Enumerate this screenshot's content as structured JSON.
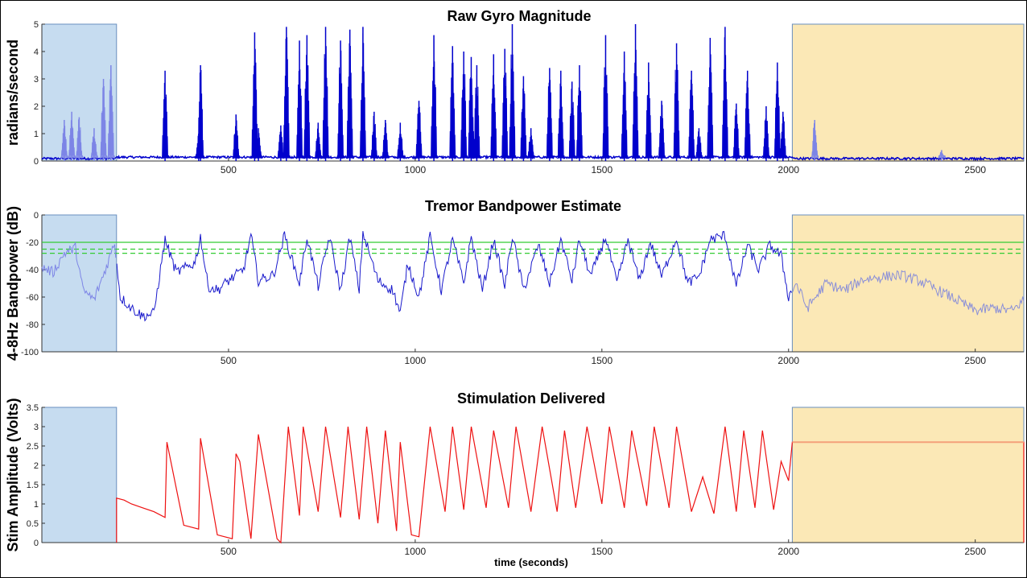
{
  "chart_data": [
    {
      "type": "line",
      "title": "Raw Gyro Magnitude",
      "ylabel": "radians/second",
      "xlabel": "",
      "xlim": [
        0,
        2630
      ],
      "ylim": [
        0,
        5
      ],
      "xticks": [
        500,
        1000,
        1500,
        2000,
        2500
      ],
      "yticks": [
        0,
        1,
        2,
        3,
        4,
        5
      ],
      "color": "#0000cc",
      "grid": false,
      "shaded_regions": [
        {
          "x": [
            0,
            200
          ],
          "color": "#c6dcf0"
        },
        {
          "x": [
            2010,
            2630
          ],
          "color": "#fbe8b6"
        }
      ],
      "spikes": [
        [
          60,
          1.5
        ],
        [
          80,
          1.8
        ],
        [
          100,
          1.6
        ],
        [
          140,
          1.2
        ],
        [
          165,
          3.0
        ],
        [
          185,
          3.5
        ],
        [
          330,
          3.3
        ],
        [
          420,
          1.0
        ],
        [
          425,
          3.5
        ],
        [
          520,
          1.7
        ],
        [
          570,
          4.7
        ],
        [
          580,
          1.2
        ],
        [
          640,
          1.3
        ],
        [
          655,
          4.9
        ],
        [
          690,
          4.4
        ],
        [
          710,
          4.6
        ],
        [
          740,
          1.4
        ],
        [
          760,
          4.9
        ],
        [
          800,
          4.4
        ],
        [
          825,
          4.8
        ],
        [
          860,
          4.9
        ],
        [
          890,
          1.8
        ],
        [
          920,
          1.5
        ],
        [
          960,
          1.4
        ],
        [
          1010,
          2.2
        ],
        [
          1050,
          4.6
        ],
        [
          1100,
          4.2
        ],
        [
          1130,
          4.0
        ],
        [
          1150,
          3.8
        ],
        [
          1165,
          3.5
        ],
        [
          1210,
          3.9
        ],
        [
          1240,
          4.1
        ],
        [
          1260,
          5.0
        ],
        [
          1290,
          3.1
        ],
        [
          1310,
          1.2
        ],
        [
          1360,
          3.4
        ],
        [
          1390,
          3.3
        ],
        [
          1420,
          2.9
        ],
        [
          1440,
          3.5
        ],
        [
          1510,
          4.6
        ],
        [
          1560,
          4.0
        ],
        [
          1590,
          5.0
        ],
        [
          1625,
          3.6
        ],
        [
          1660,
          2.2
        ],
        [
          1700,
          4.3
        ],
        [
          1740,
          3.3
        ],
        [
          1760,
          1.2
        ],
        [
          1790,
          4.5
        ],
        [
          1830,
          4.9
        ],
        [
          1860,
          2.1
        ],
        [
          1890,
          3.3
        ],
        [
          1940,
          2.0
        ],
        [
          1970,
          3.6
        ],
        [
          1985,
          1.8
        ],
        [
          2070,
          1.5
        ],
        [
          2410,
          0.4
        ]
      ]
    },
    {
      "type": "line",
      "title": "Tremor Bandpower Estimate",
      "ylabel": "4-8Hz Bandpower (dB)",
      "xlabel": "",
      "xlim": [
        0,
        2630
      ],
      "ylim": [
        -100,
        0
      ],
      "xticks": [
        500,
        1000,
        1500,
        2000,
        2500
      ],
      "yticks": [
        -100,
        -80,
        -60,
        -40,
        -20,
        0
      ],
      "color": "#1a1acc",
      "threshold_lines": [
        {
          "y": -20,
          "style": "solid",
          "color": "#33cc33"
        },
        {
          "y": -25,
          "style": "dashed",
          "color": "#33cc33"
        },
        {
          "y": -28,
          "style": "dashed",
          "color": "#33cc33"
        }
      ],
      "shaded_regions": [
        {
          "x": [
            0,
            200
          ],
          "color": "#c6dcf0"
        },
        {
          "x": [
            2010,
            2630
          ],
          "color": "#fbe8b6"
        }
      ],
      "series_points": [
        [
          0,
          -38
        ],
        [
          30,
          -42
        ],
        [
          60,
          -28
        ],
        [
          90,
          -24
        ],
        [
          110,
          -55
        ],
        [
          140,
          -62
        ],
        [
          170,
          -40
        ],
        [
          195,
          -20
        ],
        [
          210,
          -60
        ],
        [
          240,
          -68
        ],
        [
          270,
          -74
        ],
        [
          300,
          -72
        ],
        [
          330,
          -18
        ],
        [
          360,
          -42
        ],
        [
          390,
          -38
        ],
        [
          410,
          -35
        ],
        [
          425,
          -16
        ],
        [
          445,
          -52
        ],
        [
          470,
          -55
        ],
        [
          500,
          -48
        ],
        [
          540,
          -40
        ],
        [
          560,
          -15
        ],
        [
          580,
          -48
        ],
        [
          620,
          -44
        ],
        [
          650,
          -15
        ],
        [
          690,
          -50
        ],
        [
          710,
          -16
        ],
        [
          740,
          -52
        ],
        [
          770,
          -16
        ],
        [
          800,
          -55
        ],
        [
          825,
          -16
        ],
        [
          850,
          -55
        ],
        [
          860,
          -13
        ],
        [
          900,
          -48
        ],
        [
          940,
          -55
        ],
        [
          960,
          -72
        ],
        [
          980,
          -35
        ],
        [
          1010,
          -60
        ],
        [
          1040,
          -16
        ],
        [
          1070,
          -55
        ],
        [
          1100,
          -18
        ],
        [
          1130,
          -50
        ],
        [
          1150,
          -16
        ],
        [
          1180,
          -55
        ],
        [
          1210,
          -18
        ],
        [
          1240,
          -52
        ],
        [
          1260,
          -15
        ],
        [
          1290,
          -55
        ],
        [
          1330,
          -22
        ],
        [
          1360,
          -50
        ],
        [
          1390,
          -18
        ],
        [
          1420,
          -48
        ],
        [
          1440,
          -18
        ],
        [
          1470,
          -45
        ],
        [
          1510,
          -16
        ],
        [
          1540,
          -50
        ],
        [
          1570,
          -18
        ],
        [
          1600,
          -48
        ],
        [
          1630,
          -20
        ],
        [
          1660,
          -45
        ],
        [
          1700,
          -17
        ],
        [
          1730,
          -50
        ],
        [
          1760,
          -45
        ],
        [
          1790,
          -18
        ],
        [
          1830,
          -15
        ],
        [
          1860,
          -52
        ],
        [
          1890,
          -22
        ],
        [
          1920,
          -40
        ],
        [
          1950,
          -22
        ],
        [
          1980,
          -30
        ],
        [
          2000,
          -60
        ],
        [
          2020,
          -50
        ],
        [
          2050,
          -68
        ],
        [
          2100,
          -50
        ],
        [
          2150,
          -55
        ],
        [
          2200,
          -47
        ],
        [
          2260,
          -45
        ],
        [
          2300,
          -44
        ],
        [
          2350,
          -48
        ],
        [
          2400,
          -55
        ],
        [
          2450,
          -62
        ],
        [
          2500,
          -70
        ],
        [
          2550,
          -68
        ],
        [
          2600,
          -70
        ],
        [
          2630,
          -62
        ]
      ]
    },
    {
      "type": "line",
      "title": "Stimulation Delivered",
      "ylabel": "Stim Amplitude (Volts)",
      "xlabel": "time (seconds)",
      "xlim": [
        0,
        2630
      ],
      "ylim": [
        0,
        3.5
      ],
      "xticks": [
        500,
        1000,
        1500,
        2000,
        2500
      ],
      "yticks": [
        0,
        0.5,
        1,
        1.5,
        2,
        2.5,
        3,
        3.5
      ],
      "color": "#ee1111",
      "shaded_regions": [
        {
          "x": [
            0,
            200
          ],
          "color": "#c6dcf0"
        },
        {
          "x": [
            2010,
            2630
          ],
          "color": "#fbe8b6"
        }
      ],
      "series_points": [
        [
          200,
          0.0
        ],
        [
          200,
          1.15
        ],
        [
          220,
          1.1
        ],
        [
          240,
          1.0
        ],
        [
          270,
          0.9
        ],
        [
          300,
          0.8
        ],
        [
          330,
          0.65
        ],
        [
          335,
          2.6
        ],
        [
          380,
          0.45
        ],
        [
          420,
          0.35
        ],
        [
          425,
          2.7
        ],
        [
          470,
          0.2
        ],
        [
          510,
          0.1
        ],
        [
          520,
          2.3
        ],
        [
          530,
          2.1
        ],
        [
          560,
          0.1
        ],
        [
          580,
          2.8
        ],
        [
          630,
          0.1
        ],
        [
          640,
          0.0
        ],
        [
          660,
          3.0
        ],
        [
          690,
          0.7
        ],
        [
          700,
          3.0
        ],
        [
          740,
          0.8
        ],
        [
          760,
          3.0
        ],
        [
          800,
          0.65
        ],
        [
          820,
          3.0
        ],
        [
          850,
          0.6
        ],
        [
          870,
          3.0
        ],
        [
          900,
          0.5
        ],
        [
          920,
          2.9
        ],
        [
          950,
          0.3
        ],
        [
          960,
          2.6
        ],
        [
          990,
          0.2
        ],
        [
          1010,
          0.15
        ],
        [
          1040,
          3.0
        ],
        [
          1080,
          0.8
        ],
        [
          1100,
          3.0
        ],
        [
          1130,
          0.85
        ],
        [
          1150,
          3.0
        ],
        [
          1190,
          0.9
        ],
        [
          1210,
          2.9
        ],
        [
          1250,
          0.9
        ],
        [
          1270,
          3.0
        ],
        [
          1310,
          0.8
        ],
        [
          1340,
          3.0
        ],
        [
          1380,
          0.8
        ],
        [
          1400,
          2.9
        ],
        [
          1430,
          0.9
        ],
        [
          1460,
          3.0
        ],
        [
          1500,
          1.0
        ],
        [
          1520,
          3.0
        ],
        [
          1560,
          0.9
        ],
        [
          1580,
          2.9
        ],
        [
          1620,
          0.95
        ],
        [
          1640,
          3.0
        ],
        [
          1680,
          0.9
        ],
        [
          1700,
          3.0
        ],
        [
          1740,
          0.8
        ],
        [
          1770,
          1.7
        ],
        [
          1800,
          0.75
        ],
        [
          1830,
          3.0
        ],
        [
          1860,
          0.8
        ],
        [
          1880,
          2.9
        ],
        [
          1910,
          0.9
        ],
        [
          1930,
          2.9
        ],
        [
          1960,
          0.85
        ],
        [
          1980,
          2.1
        ],
        [
          2000,
          1.6
        ],
        [
          2010,
          2.6
        ],
        [
          2630,
          2.6
        ],
        [
          2630,
          0.0
        ]
      ]
    }
  ]
}
